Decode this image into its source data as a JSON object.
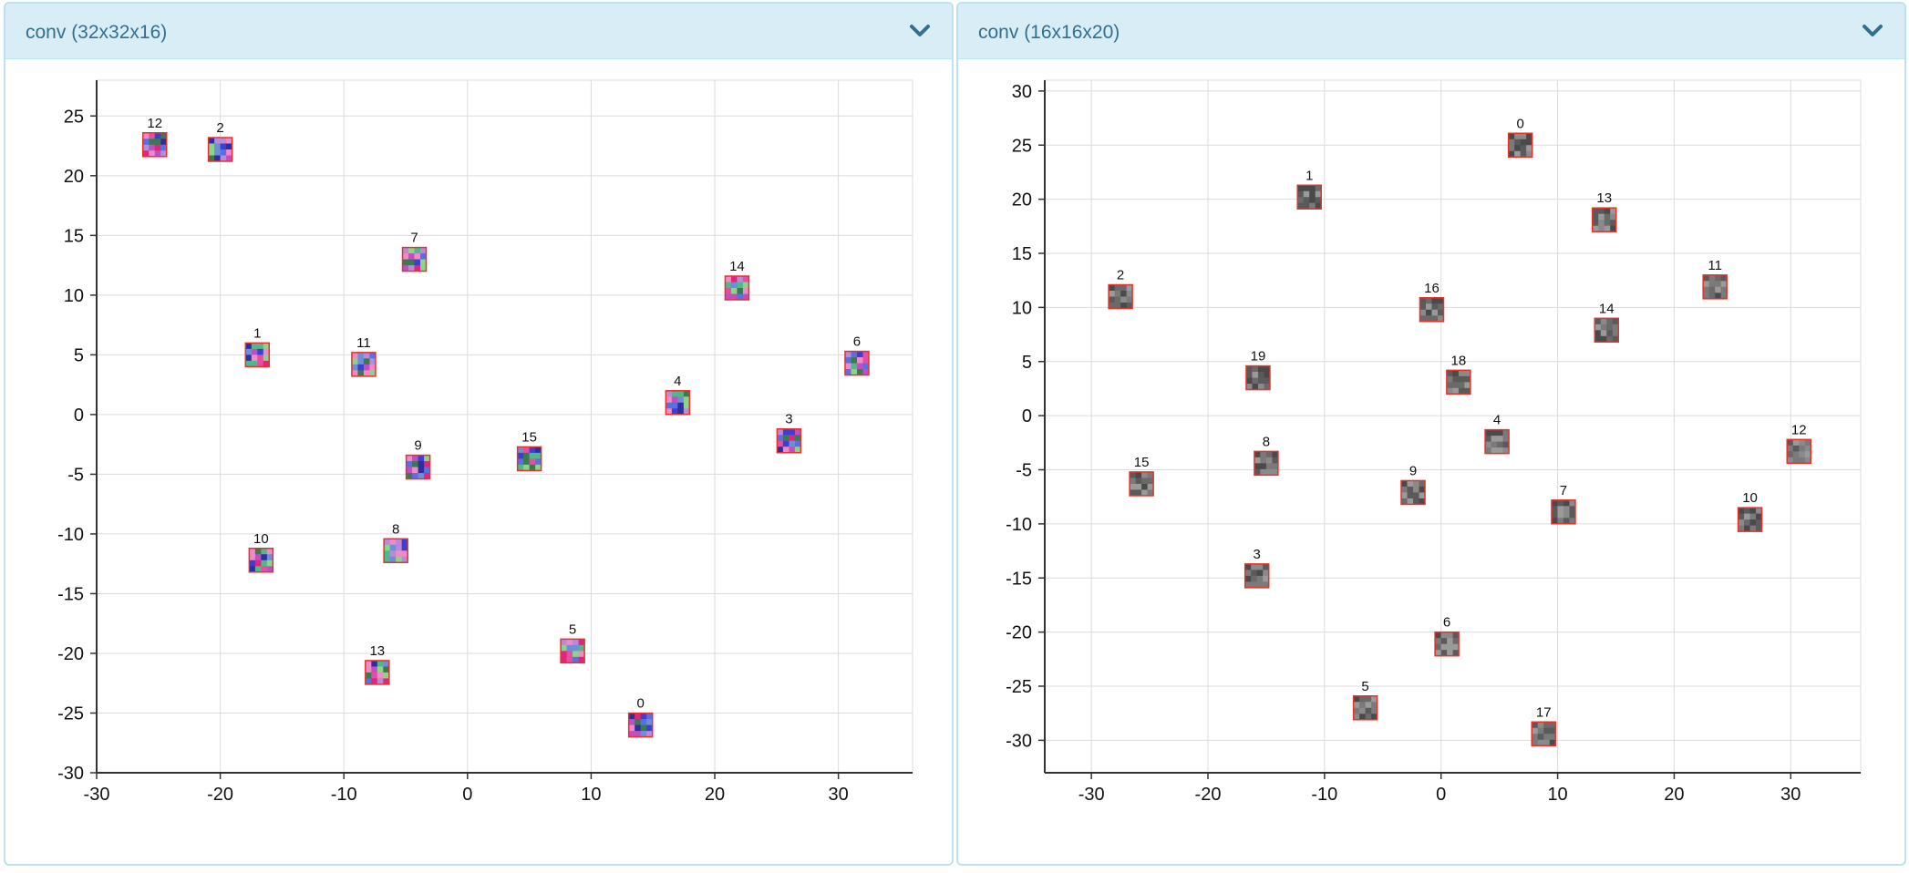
{
  "panels": [
    {
      "title": "conv (32x32x16)",
      "toggle_icon": "chevron-down-icon"
    },
    {
      "title": "conv (16x16x20)",
      "toggle_icon": "chevron-down-icon"
    }
  ],
  "colors": {
    "header_bg": "#d9edf7",
    "header_text": "#31708f",
    "tile_border": "#e5322b",
    "grid": "#dcdcdc"
  },
  "chart_data": [
    {
      "type": "scatter",
      "title": "conv (32x32x16)",
      "xlim": [
        -30,
        36
      ],
      "ylim": [
        -30,
        28
      ],
      "x_ticks": [
        -30,
        -20,
        -10,
        0,
        10,
        20,
        30
      ],
      "y_ticks": [
        -30,
        -25,
        -20,
        -15,
        -10,
        -5,
        0,
        5,
        10,
        15,
        20,
        25
      ],
      "grid": true,
      "point_style": "image-tile",
      "palette": [
        "#3b3fd2",
        "#5a6fe0",
        "#c14fc4",
        "#e34fa2",
        "#4fb98a",
        "#8bd48a",
        "#3c7a4e",
        "#2c2fa0",
        "#b98ad8",
        "#f08ac8",
        "#6c8fd8",
        "#e0257a"
      ],
      "points": [
        {
          "label": "0",
          "x": 14,
          "y": -26
        },
        {
          "label": "1",
          "x": -17,
          "y": 5
        },
        {
          "label": "2",
          "x": -20,
          "y": 22.2
        },
        {
          "label": "3",
          "x": 26,
          "y": -2.2
        },
        {
          "label": "4",
          "x": 17,
          "y": 1
        },
        {
          "label": "5",
          "x": 8.5,
          "y": -19.8
        },
        {
          "label": "6",
          "x": 31.5,
          "y": 4.3
        },
        {
          "label": "7",
          "x": -4.3,
          "y": 13
        },
        {
          "label": "8",
          "x": -5.8,
          "y": -11.4
        },
        {
          "label": "9",
          "x": -4,
          "y": -4.4
        },
        {
          "label": "10",
          "x": -16.7,
          "y": -12.2
        },
        {
          "label": "11",
          "x": -8.4,
          "y": 4.2
        },
        {
          "label": "12",
          "x": -25.3,
          "y": 22.6
        },
        {
          "label": "13",
          "x": -7.3,
          "y": -21.6
        },
        {
          "label": "14",
          "x": 21.8,
          "y": 10.6
        },
        {
          "label": "15",
          "x": 5,
          "y": -3.7
        }
      ]
    },
    {
      "type": "scatter",
      "title": "conv (16x16x20)",
      "xlim": [
        -34,
        36
      ],
      "ylim": [
        -33,
        31
      ],
      "x_ticks": [
        -30,
        -20,
        -10,
        0,
        10,
        20,
        30
      ],
      "y_ticks": [
        -30,
        -25,
        -20,
        -15,
        -10,
        -5,
        0,
        5,
        10,
        15,
        20,
        25,
        30
      ],
      "grid": true,
      "point_style": "image-tile",
      "palette": [
        "#4a4a4a",
        "#5a5a5a",
        "#6a6a6a",
        "#7a7a7a",
        "#8a8a8a",
        "#9a9a9a"
      ],
      "points": [
        {
          "label": "0",
          "x": 6.8,
          "y": 25
        },
        {
          "label": "1",
          "x": -11.3,
          "y": 20.2
        },
        {
          "label": "2",
          "x": -27.5,
          "y": 11
        },
        {
          "label": "3",
          "x": -15.8,
          "y": -14.8
        },
        {
          "label": "4",
          "x": 4.8,
          "y": -2.4
        },
        {
          "label": "5",
          "x": -6.5,
          "y": -27
        },
        {
          "label": "6",
          "x": 0.5,
          "y": -21.1
        },
        {
          "label": "7",
          "x": 10.5,
          "y": -8.9
        },
        {
          "label": "8",
          "x": -15,
          "y": -4.4
        },
        {
          "label": "9",
          "x": -2.4,
          "y": -7.1
        },
        {
          "label": "10",
          "x": 26.5,
          "y": -9.6
        },
        {
          "label": "11",
          "x": 23.5,
          "y": 11.9
        },
        {
          "label": "12",
          "x": 30.7,
          "y": -3.3
        },
        {
          "label": "13",
          "x": 14,
          "y": 18.1
        },
        {
          "label": "14",
          "x": 14.2,
          "y": 7.9
        },
        {
          "label": "15",
          "x": -25.7,
          "y": -6.3
        },
        {
          "label": "16",
          "x": -0.8,
          "y": 9.8
        },
        {
          "label": "17",
          "x": 8.8,
          "y": -29.4
        },
        {
          "label": "18",
          "x": 1.5,
          "y": 3.1
        },
        {
          "label": "19",
          "x": -15.7,
          "y": 3.5
        }
      ]
    }
  ]
}
